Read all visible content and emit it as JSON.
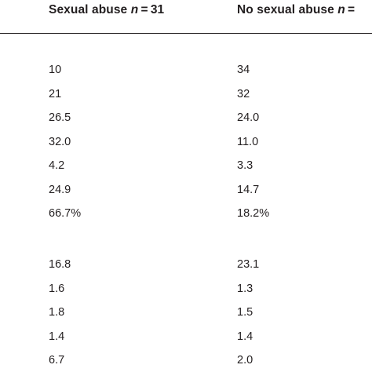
{
  "table": {
    "headers": [
      {
        "prefix": "Sexual abuse ",
        "n_label": "n",
        "suffix": " = 31"
      },
      {
        "prefix": "No sexual abuse ",
        "n_label": "n",
        "suffix": " ="
      }
    ],
    "group1": [
      [
        "10",
        "34"
      ],
      [
        "21",
        "32"
      ],
      [
        "26.5",
        "24.0"
      ],
      [
        "32.0",
        "11.0"
      ],
      [
        "4.2",
        "3.3"
      ],
      [
        "24.9",
        "14.7"
      ],
      [
        "66.7%",
        "18.2%"
      ]
    ],
    "group2": [
      [
        "16.8",
        "23.1"
      ],
      [
        "1.6",
        "1.3"
      ],
      [
        "1.8",
        "1.5"
      ],
      [
        "1.4",
        "1.4"
      ],
      [
        "6.7",
        "2.0"
      ]
    ]
  }
}
